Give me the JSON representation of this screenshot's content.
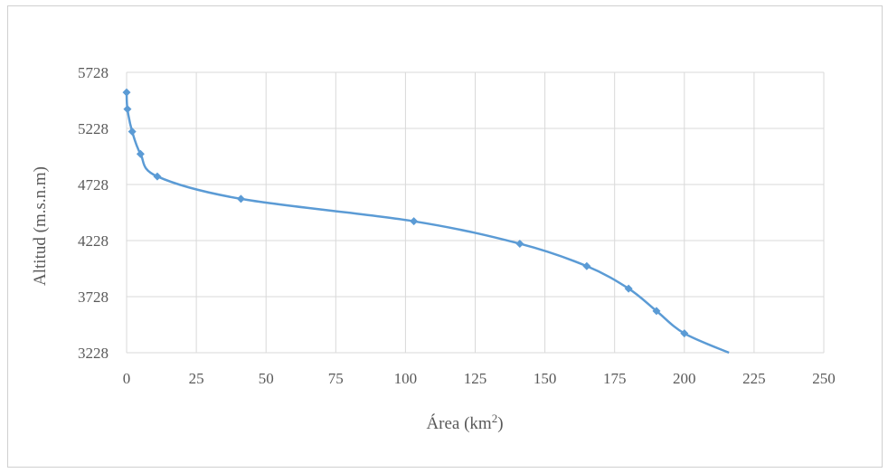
{
  "chart_data": {
    "type": "line",
    "xlabel_main": "Área (km",
    "xlabel_sup": "2",
    "xlabel_close": ")",
    "ylabel": "Altitud (m.s.n.m)",
    "xlim": [
      0,
      250
    ],
    "ylim": [
      3228,
      5728
    ],
    "xticks": [
      0,
      25,
      50,
      75,
      100,
      125,
      150,
      175,
      200,
      225,
      250
    ],
    "yticks": [
      3228,
      3728,
      4228,
      4728,
      5228,
      5728
    ],
    "grid": true,
    "smooth": true,
    "series_color": "#5b9bd5",
    "grid_color": "#d9d9d9",
    "series": [
      {
        "points": [
          [
            0,
            5550
          ],
          [
            0.3,
            5400
          ],
          [
            2,
            5200
          ],
          [
            5,
            5000
          ],
          [
            11,
            4800
          ],
          [
            41,
            4600
          ],
          [
            103,
            4400
          ],
          [
            141,
            4200
          ],
          [
            165,
            4000
          ],
          [
            180,
            3800
          ],
          [
            190,
            3600
          ],
          [
            200,
            3400
          ],
          [
            216,
            3228
          ]
        ],
        "markers_count": 12
      }
    ]
  }
}
